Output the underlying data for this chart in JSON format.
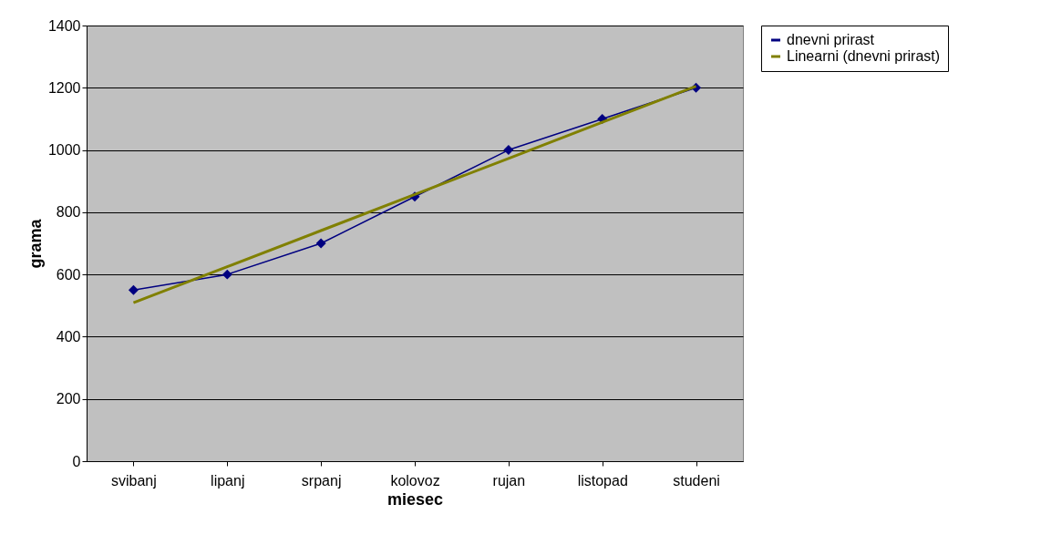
{
  "chart_data": {
    "type": "line",
    "xlabel": "miesec",
    "ylabel": "grama",
    "categories": [
      "svibanj",
      "lipanj",
      "srpanj",
      "kolovoz",
      "rujan",
      "listopad",
      "studeni"
    ],
    "series": [
      {
        "name": "dnevni prirast",
        "color": "#000080",
        "values": [
          550,
          600,
          700,
          850,
          1000,
          1100,
          1200
        ],
        "marker": "diamond"
      },
      {
        "name": "Linearni (dnevni prirast)",
        "color": "#808000",
        "values": [
          509,
          625,
          741,
          857,
          973,
          1089,
          1205
        ],
        "marker": "none"
      }
    ],
    "ylim": [
      0,
      1400
    ],
    "yticks": [
      0,
      200,
      400,
      600,
      800,
      1000,
      1200,
      1400
    ],
    "grid": "y",
    "legend": "right"
  }
}
